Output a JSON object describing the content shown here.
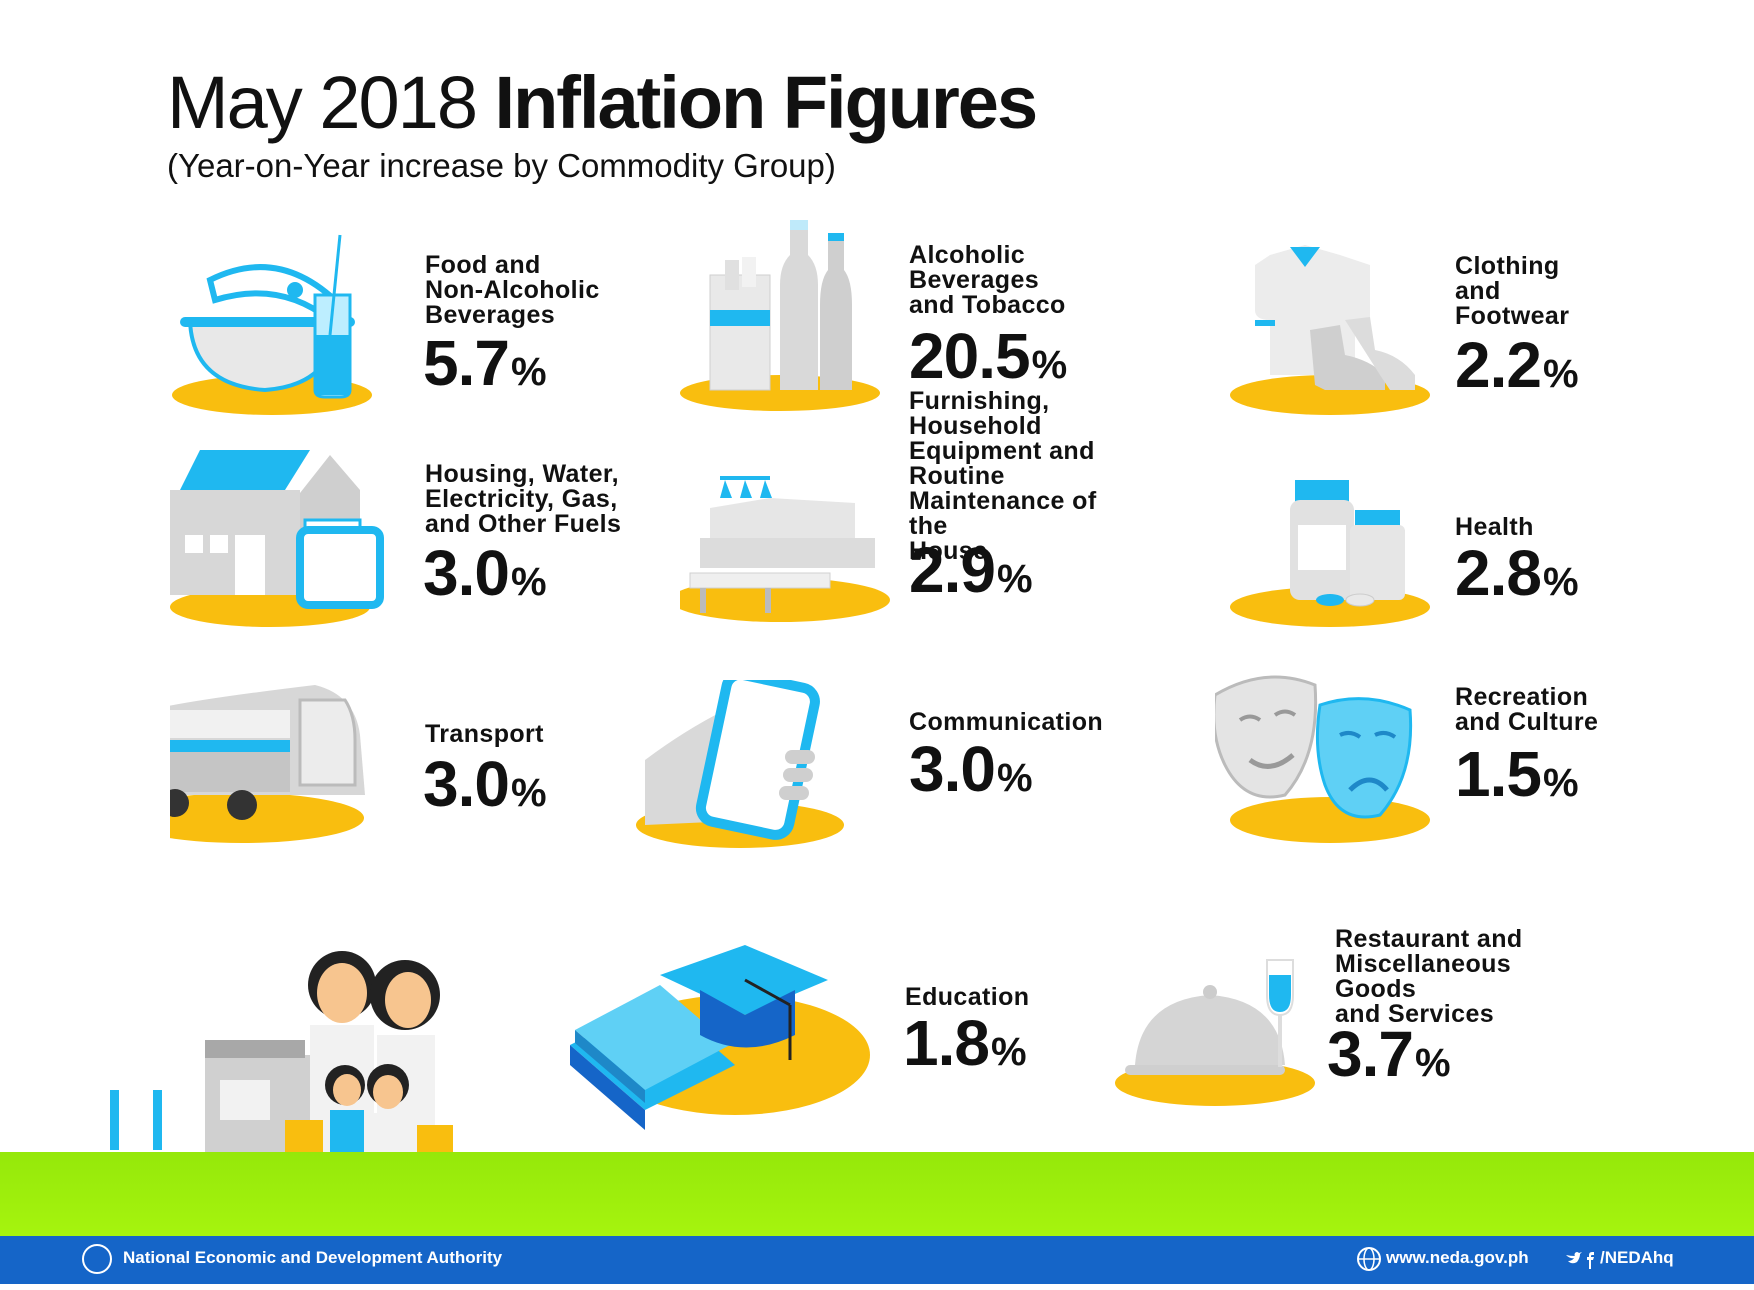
{
  "header": {
    "title_light": "May 2018",
    "title_bold": "Inflation Figures",
    "subtitle": "(Year-on-Year increase by Commodity Group)"
  },
  "colors": {
    "accent_blue": "#1fb8f0",
    "yellow": "#f9be0f",
    "grey": "#c7c7c7",
    "grass": "#9ef00c",
    "footer": "#1565c8"
  },
  "percent_sign": "%",
  "groups": [
    {
      "label": "Food and\nNon-Alcoholic\nBeverages",
      "value": "5.7",
      "icon": "pot-and-drink-icon"
    },
    {
      "label": "Alcoholic\nBeverages\nand Tobacco",
      "value": "20.5",
      "icon": "bottles-and-cigarettes-icon"
    },
    {
      "label": "Clothing\nand\nFootwear",
      "value": "2.2",
      "icon": "shirt-and-shoes-icon"
    },
    {
      "label": "Housing, Water,\nElectricity, Gas,\nand Other Fuels",
      "value": "3.0",
      "icon": "house-and-fuel-can-icon"
    },
    {
      "label": "Furnishing, Household\nEquipment and Routine\nMaintenance of the\nHouse",
      "value": "2.9",
      "icon": "sofa-and-lamp-icon"
    },
    {
      "label": "Health",
      "value": "2.8",
      "icon": "medicine-bottles-icon"
    },
    {
      "label": "Transport",
      "value": "3.0",
      "icon": "bus-icon"
    },
    {
      "label": "Communication",
      "value": "3.0",
      "icon": "smartphone-in-hand-icon"
    },
    {
      "label": "Recreation\nand Culture",
      "value": "1.5",
      "icon": "theatre-masks-icon"
    },
    {
      "label": "Education",
      "value": "1.8",
      "icon": "books-and-graduation-cap-icon"
    },
    {
      "label": "Restaurant and\nMiscellaneous Goods\nand Services",
      "value": "3.7",
      "icon": "cloche-and-wine-glass-icon"
    }
  ],
  "footer": {
    "organization": "National Economic and Development Authority",
    "website": "www.neda.gov.ph",
    "social": "/NEDAhq"
  }
}
